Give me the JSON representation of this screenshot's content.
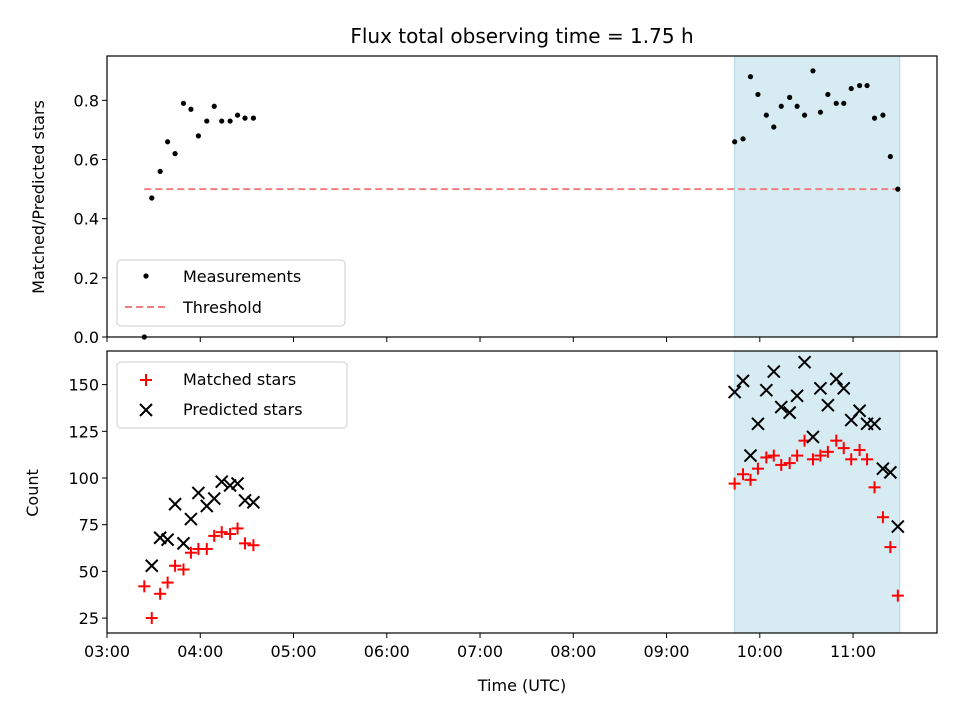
{
  "chart_data": {
    "title": "Flux total observing time = 1.75 h",
    "xlabel": "Time (UTC)",
    "x_ticks": [
      "03:00",
      "04:00",
      "05:00",
      "06:00",
      "07:00",
      "08:00",
      "09:00",
      "10:00",
      "11:00"
    ],
    "x_tick_hours": [
      3,
      4,
      5,
      6,
      7,
      8,
      9,
      10,
      11
    ],
    "xlim_hours": [
      3.0,
      11.9
    ],
    "highlight_span_hours": [
      9.73,
      11.5
    ],
    "colors": {
      "highlight": "#add8e6",
      "measurements": "#000000",
      "threshold": "#f08080",
      "matched": "#ff0000",
      "predicted": "#000000"
    },
    "top": {
      "type": "scatter",
      "ylabel": "Matched/Predicted stars",
      "ylim": [
        0,
        0.95
      ],
      "y_ticks": [
        0.0,
        0.2,
        0.4,
        0.6,
        0.8
      ],
      "y_tick_labels": [
        "0.0",
        "0.2",
        "0.4",
        "0.6",
        "0.8"
      ],
      "legend_placement": "lower-left",
      "legend": {
        "measurements": "Measurements",
        "threshold": "Threshold"
      },
      "threshold": {
        "value": 0.5,
        "x_range_hours": [
          3.4,
          11.5
        ]
      },
      "measurements": {
        "x_hours": [
          3.4,
          3.48,
          3.57,
          3.65,
          3.73,
          3.82,
          3.9,
          3.98,
          4.07,
          4.15,
          4.23,
          4.32,
          4.4,
          4.48,
          4.57,
          9.73,
          9.82,
          9.9,
          9.98,
          10.07,
          10.15,
          10.23,
          10.32,
          10.4,
          10.48,
          10.57,
          10.65,
          10.73,
          10.82,
          10.9,
          10.98,
          11.07,
          11.15,
          11.23,
          11.32,
          11.4,
          11.48
        ],
        "y": [
          0.0,
          0.47,
          0.56,
          0.66,
          0.62,
          0.79,
          0.77,
          0.68,
          0.73,
          0.78,
          0.73,
          0.73,
          0.75,
          0.74,
          0.74,
          0.66,
          0.67,
          0.88,
          0.82,
          0.75,
          0.71,
          0.78,
          0.81,
          0.78,
          0.75,
          0.9,
          0.76,
          0.82,
          0.79,
          0.79,
          0.84,
          0.85,
          0.85,
          0.74,
          0.75,
          0.61,
          0.5
        ]
      }
    },
    "bottom": {
      "type": "scatter",
      "ylabel": "Count",
      "ylim": [
        17,
        168
      ],
      "y_ticks": [
        25,
        50,
        75,
        100,
        125,
        150
      ],
      "y_tick_labels": [
        "25",
        "50",
        "75",
        "100",
        "125",
        "150"
      ],
      "legend_placement": "upper-left",
      "legend": {
        "matched": "Matched stars",
        "predicted": "Predicted stars"
      },
      "matched": {
        "x_hours": [
          3.4,
          3.48,
          3.57,
          3.65,
          3.73,
          3.82,
          3.9,
          3.98,
          4.07,
          4.15,
          4.23,
          4.32,
          4.4,
          4.48,
          4.57,
          9.73,
          9.82,
          9.9,
          9.98,
          10.07,
          10.15,
          10.23,
          10.32,
          10.4,
          10.48,
          10.57,
          10.65,
          10.73,
          10.82,
          10.9,
          10.98,
          11.07,
          11.15,
          11.23,
          11.32,
          11.4,
          11.48
        ],
        "y": [
          42,
          25,
          38,
          44,
          53,
          51,
          60,
          62,
          62,
          69,
          71,
          70,
          73,
          65,
          64,
          97,
          102,
          99,
          105,
          111,
          112,
          107,
          108,
          112,
          120,
          110,
          112,
          114,
          120,
          116,
          110,
          115,
          110,
          95,
          79,
          63,
          37
        ]
      },
      "predicted": {
        "x_hours": [
          3.48,
          3.57,
          3.65,
          3.73,
          3.82,
          3.9,
          3.98,
          4.07,
          4.15,
          4.23,
          4.32,
          4.4,
          4.48,
          4.57,
          9.73,
          9.82,
          9.9,
          9.98,
          10.07,
          10.15,
          10.23,
          10.32,
          10.4,
          10.48,
          10.57,
          10.65,
          10.73,
          10.82,
          10.9,
          10.98,
          11.07,
          11.15,
          11.23,
          11.32,
          11.4,
          11.48
        ],
        "y": [
          53,
          68,
          67,
          86,
          65,
          78,
          92,
          85,
          89,
          98,
          96,
          97,
          88,
          87,
          146,
          152,
          112,
          129,
          147,
          157,
          138,
          135,
          144,
          162,
          122,
          148,
          139,
          153,
          148,
          131,
          136,
          129,
          129,
          105,
          103,
          74
        ]
      }
    }
  }
}
